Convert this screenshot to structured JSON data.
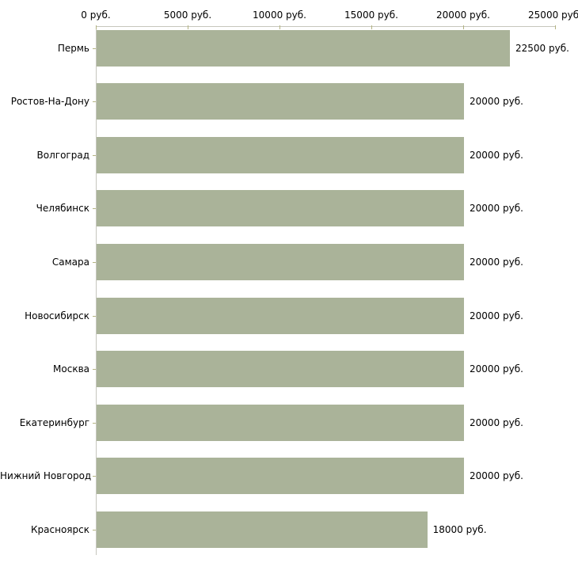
{
  "chart_data": {
    "type": "bar",
    "orientation": "horizontal",
    "title": "",
    "xlabel": "",
    "ylabel": "",
    "grid": false,
    "legend": false,
    "categories": [
      "Пермь",
      "Ростов-На-Дону",
      "Волгоград",
      "Челябинск",
      "Самара",
      "Новосибирск",
      "Москва",
      "Екатеринбург",
      "Нижний Новгород",
      "Красноярск"
    ],
    "values": [
      22500,
      20000,
      20000,
      20000,
      20000,
      20000,
      20000,
      20000,
      20000,
      18000
    ],
    "value_labels": [
      "22500 руб.",
      "20000 руб.",
      "20000 руб.",
      "20000 руб.",
      "20000 руб.",
      "20000 руб.",
      "20000 руб.",
      "20000 руб.",
      "20000 руб.",
      "18000 руб."
    ],
    "x_axis": {
      "position": "top",
      "range": [
        0,
        25000
      ],
      "tick_values": [
        0,
        5000,
        10000,
        15000,
        20000,
        25000
      ],
      "tick_labels": [
        "0 руб.",
        "5000 руб.",
        "10000 руб.",
        "15000 руб.",
        "20000 руб.",
        "25000 руб."
      ]
    },
    "colors": {
      "bar": "#aab399",
      "axis": "#c6c6bd",
      "tick": "#b3b382",
      "text": "#000000",
      "background": "#ffffff"
    }
  }
}
